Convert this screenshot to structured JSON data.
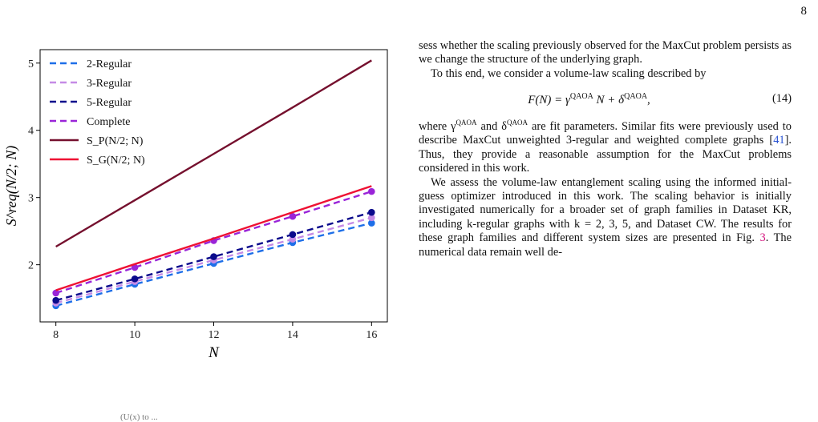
{
  "page": {
    "number": "8"
  },
  "figure": {
    "caption_fragment": "(U(x) to ...",
    "legend": [
      {
        "label": "2-Regular",
        "color": "#1e6fe8",
        "style": "dashed"
      },
      {
        "label": "3-Regular",
        "color": "#c58be6",
        "style": "dashed"
      },
      {
        "label": "5-Regular",
        "color": "#0a0a8c",
        "style": "dashed"
      },
      {
        "label": "Complete",
        "color": "#9a24d8",
        "style": "dashed"
      },
      {
        "label": "S_P(N/2; N)",
        "color": "#75102e",
        "style": "solid"
      },
      {
        "label": "S_G(N/2; N)",
        "color": "#ee1133",
        "style": "solid"
      }
    ]
  },
  "chart_data": {
    "type": "line",
    "xlabel": "N",
    "ylabel": "S^req(N/2; N)",
    "x": [
      8,
      10,
      12,
      14,
      16
    ],
    "xticks": [
      8,
      10,
      12,
      14,
      16
    ],
    "yticks": [
      2,
      3,
      4,
      5
    ],
    "xlim": [
      7.6,
      16.4
    ],
    "ylim": [
      1.15,
      5.2
    ],
    "grid": false,
    "legend_position": "top-left",
    "series": [
      {
        "name": "2-Regular",
        "color": "#1e6fe8",
        "style": "dashed",
        "markers": true,
        "values": [
          1.39,
          1.71,
          2.02,
          2.33,
          2.62
        ]
      },
      {
        "name": "3-Regular",
        "color": "#c58be6",
        "style": "dashed",
        "markers": true,
        "values": [
          1.43,
          1.75,
          2.07,
          2.38,
          2.7
        ]
      },
      {
        "name": "5-Regular",
        "color": "#0a0a8c",
        "style": "dashed",
        "markers": true,
        "values": [
          1.47,
          1.79,
          2.12,
          2.45,
          2.78
        ]
      },
      {
        "name": "Complete",
        "color": "#9a24d8",
        "style": "dashed",
        "markers": true,
        "values": [
          1.58,
          1.96,
          2.36,
          2.72,
          3.09
        ]
      },
      {
        "name": "S_P(N/2; N)",
        "color": "#75102e",
        "style": "solid",
        "markers": false,
        "values": [
          2.27,
          2.96,
          3.65,
          4.34,
          5.04
        ]
      },
      {
        "name": "S_G(N/2; N)",
        "color": "#ee1133",
        "style": "solid",
        "markers": false,
        "values": [
          1.62,
          2.01,
          2.39,
          2.78,
          3.17
        ]
      }
    ]
  },
  "text": {
    "p1": "sess whether the scaling previously observed for the MaxCut problem persists as we change the structure of the underlying graph.",
    "p2": "To this end, we consider a volume-law scaling described by",
    "equation": {
      "lhs": "F(N) = γ",
      "sup1": "QAOA",
      "mid": "N + δ",
      "sup2": "QAOA",
      "rhs": ",",
      "number": "(14)"
    },
    "p3": {
      "a": "where γ",
      "sup1": "QAOA",
      "b": " and δ",
      "sup2": "QAOA",
      "c": " are fit parameters. Similar fits were previously used to describe MaxCut unweighted 3-regular and weighted complete graphs [",
      "cite": "41",
      "d": "]. Thus, they provide a reasonable assumption for the MaxCut problems considered in this work."
    },
    "p4": {
      "a": "We assess the volume-law entanglement scaling using the informed initial-guess optimizer introduced in this work. The scaling behavior is initially investigated numerically for a broader set of graph families in Dataset KR, including k-regular graphs with k = 2, 3, 5, and Dataset CW. The results for these graph families and different system sizes are presented in Fig. ",
      "figref": "3",
      "b": ". The numerical data remain well de-"
    }
  }
}
